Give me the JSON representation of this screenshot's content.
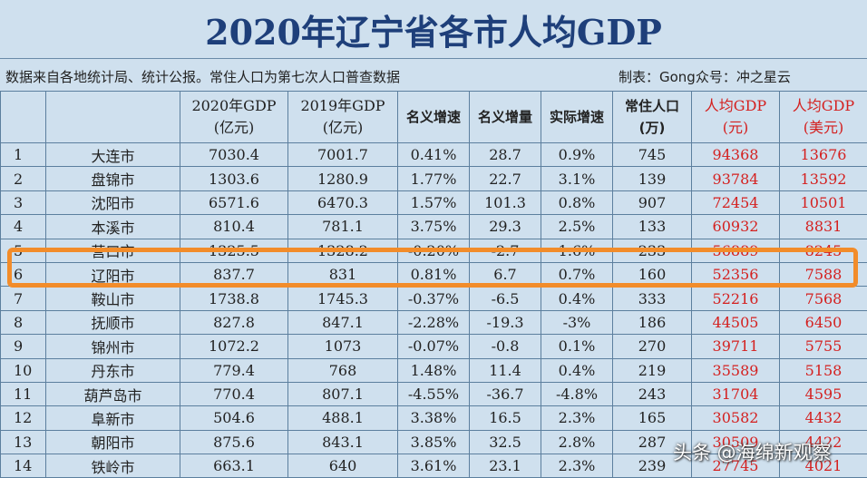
{
  "title": "2020年辽宁省各市人均GDP",
  "source_note": "数据来自各地统计局、统计公报。常住人口为第七次人口普查数据",
  "maker_note": "制表：Gong众号：冲之星云",
  "headers": {
    "gdp2020_line1": "2020年GDP",
    "gdp2020_line2": "(亿元)",
    "gdp2019_line1": "2019年GDP",
    "gdp2019_line2": "(亿元)",
    "nominal_growth": "名义增速",
    "nominal_increase": "名义增量",
    "real_growth": "实际增速",
    "population_line1": "常住人口",
    "population_line2": "(万)",
    "gdp_pc_cny_line1": "人均GDP",
    "gdp_pc_cny_line2": "(元)",
    "gdp_pc_usd_line1": "人均GDP",
    "gdp_pc_usd_line2": "(美元)"
  },
  "rows": [
    {
      "rank": "1",
      "city": "大连市",
      "gdp2020": "7030.4",
      "gdp2019": "7001.7",
      "nominal_growth": "0.41%",
      "nominal_increase": "28.7",
      "real_growth": "0.9%",
      "population": "745",
      "gdp_pc_cny": "94368",
      "gdp_pc_usd": "13676"
    },
    {
      "rank": "2",
      "city": "盘锦市",
      "gdp2020": "1303.6",
      "gdp2019": "1280.9",
      "nominal_growth": "1.77%",
      "nominal_increase": "22.7",
      "real_growth": "3.1%",
      "population": "139",
      "gdp_pc_cny": "93784",
      "gdp_pc_usd": "13592"
    },
    {
      "rank": "3",
      "city": "沈阳市",
      "gdp2020": "6571.6",
      "gdp2019": "6470.3",
      "nominal_growth": "1.57%",
      "nominal_increase": "101.3",
      "real_growth": "0.8%",
      "population": "907",
      "gdp_pc_cny": "72454",
      "gdp_pc_usd": "10501"
    },
    {
      "rank": "4",
      "city": "本溪市",
      "gdp2020": "810.4",
      "gdp2019": "781.1",
      "nominal_growth": "3.75%",
      "nominal_increase": "29.3",
      "real_growth": "2.5%",
      "population": "133",
      "gdp_pc_cny": "60932",
      "gdp_pc_usd": "8831"
    },
    {
      "rank": "5",
      "city": "营口市",
      "gdp2020": "1325.5",
      "gdp2019": "1328.2",
      "nominal_growth": "-0.20%",
      "nominal_increase": "-2.7",
      "real_growth": "1.6%",
      "population": "233",
      "gdp_pc_cny": "56889",
      "gdp_pc_usd": "8245"
    },
    {
      "rank": "6",
      "city": "辽阳市",
      "gdp2020": "837.7",
      "gdp2019": "831",
      "nominal_growth": "0.81%",
      "nominal_increase": "6.7",
      "real_growth": "0.7%",
      "population": "160",
      "gdp_pc_cny": "52356",
      "gdp_pc_usd": "7588"
    },
    {
      "rank": "7",
      "city": "鞍山市",
      "gdp2020": "1738.8",
      "gdp2019": "1745.3",
      "nominal_growth": "-0.37%",
      "nominal_increase": "-6.5",
      "real_growth": "0.4%",
      "population": "333",
      "gdp_pc_cny": "52216",
      "gdp_pc_usd": "7568"
    },
    {
      "rank": "8",
      "city": "抚顺市",
      "gdp2020": "827.8",
      "gdp2019": "847.1",
      "nominal_growth": "-2.28%",
      "nominal_increase": "-19.3",
      "real_growth": "-3%",
      "population": "186",
      "gdp_pc_cny": "44505",
      "gdp_pc_usd": "6450"
    },
    {
      "rank": "9",
      "city": "锦州市",
      "gdp2020": "1072.2",
      "gdp2019": "1073",
      "nominal_growth": "-0.07%",
      "nominal_increase": "-0.8",
      "real_growth": "0.1%",
      "population": "270",
      "gdp_pc_cny": "39711",
      "gdp_pc_usd": "5755"
    },
    {
      "rank": "10",
      "city": "丹东市",
      "gdp2020": "779.4",
      "gdp2019": "768",
      "nominal_growth": "1.48%",
      "nominal_increase": "11.4",
      "real_growth": "0.4%",
      "population": "219",
      "gdp_pc_cny": "35589",
      "gdp_pc_usd": "5158"
    },
    {
      "rank": "11",
      "city": "葫芦岛市",
      "gdp2020": "770.4",
      "gdp2019": "807.1",
      "nominal_growth": "-4.55%",
      "nominal_increase": "-36.7",
      "real_growth": "-4.8%",
      "population": "243",
      "gdp_pc_cny": "31704",
      "gdp_pc_usd": "4595"
    },
    {
      "rank": "12",
      "city": "阜新市",
      "gdp2020": "504.6",
      "gdp2019": "488.1",
      "nominal_growth": "3.38%",
      "nominal_increase": "16.5",
      "real_growth": "2.3%",
      "population": "165",
      "gdp_pc_cny": "30582",
      "gdp_pc_usd": "4432"
    },
    {
      "rank": "13",
      "city": "朝阳市",
      "gdp2020": "875.6",
      "gdp2019": "843.1",
      "nominal_growth": "3.85%",
      "nominal_increase": "32.5",
      "real_growth": "2.8%",
      "population": "287",
      "gdp_pc_cny": "30509",
      "gdp_pc_usd": "4422"
    },
    {
      "rank": "14",
      "city": "铁岭市",
      "gdp2020": "663.1",
      "gdp2019": "640",
      "nominal_growth": "3.61%",
      "nominal_increase": "23.1",
      "real_growth": "2.3%",
      "population": "239",
      "gdp_pc_cny": "27745",
      "gdp_pc_usd": "4021"
    }
  ],
  "watermark": "头条 @海绵新观察",
  "colors": {
    "accent_red": "#d4201f",
    "highlight_orange": "#f28c2a",
    "title_blue": "#1e3f7a"
  }
}
